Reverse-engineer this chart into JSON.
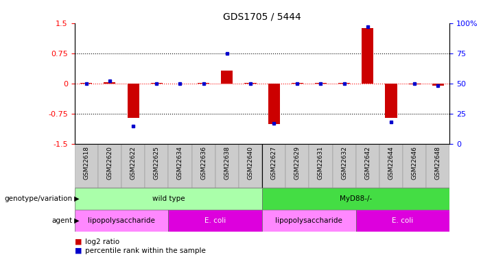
{
  "title": "GDS1705 / 5444",
  "samples": [
    "GSM22618",
    "GSM22620",
    "GSM22622",
    "GSM22625",
    "GSM22634",
    "GSM22636",
    "GSM22638",
    "GSM22640",
    "GSM22627",
    "GSM22629",
    "GSM22631",
    "GSM22632",
    "GSM22642",
    "GSM22644",
    "GSM22646",
    "GSM22648"
  ],
  "log2_ratio": [
    0.02,
    0.03,
    -0.85,
    0.01,
    0.0,
    0.01,
    0.32,
    0.01,
    -1.0,
    0.02,
    0.01,
    0.01,
    1.38,
    -0.85,
    -0.02,
    -0.05
  ],
  "percentile_rank": [
    50,
    52,
    15,
    50,
    50,
    50,
    75,
    50,
    17,
    50,
    50,
    50,
    97,
    18,
    50,
    48
  ],
  "bar_color": "#cc0000",
  "scatter_color": "#0000cc",
  "ylim_left": [
    -1.5,
    1.5
  ],
  "ylim_right": [
    0,
    100
  ],
  "yticks_left": [
    -1.5,
    -0.75,
    0,
    0.75,
    1.5
  ],
  "yticks_right": [
    0,
    25,
    50,
    75,
    100
  ],
  "hlines": [
    -0.75,
    0,
    0.75
  ],
  "hline_colors": [
    "black",
    "red",
    "black"
  ],
  "hline_styles": [
    "dotted",
    "dotted",
    "dotted"
  ],
  "genotype_groups": [
    {
      "label": "wild type",
      "start": 0,
      "end": 8,
      "color": "#aaffaa"
    },
    {
      "label": "MyD88-/-",
      "start": 8,
      "end": 16,
      "color": "#44dd44"
    }
  ],
  "agent_groups": [
    {
      "label": "lipopolysaccharide",
      "start": 0,
      "end": 4,
      "color": "#ff88ff"
    },
    {
      "label": "E. coli",
      "start": 4,
      "end": 8,
      "color": "#dd00dd"
    },
    {
      "label": "lipopolysaccharide",
      "start": 8,
      "end": 12,
      "color": "#ff88ff"
    },
    {
      "label": "E. coli",
      "start": 12,
      "end": 16,
      "color": "#dd00dd"
    }
  ],
  "legend_red_label": "log2 ratio",
  "legend_blue_label": "percentile rank within the sample",
  "bar_color_legend": "#cc0000",
  "scatter_color_legend": "#0000cc",
  "background_color": "#ffffff",
  "bar_width": 0.5,
  "xlabel_gray": "#cccccc",
  "tick_label_fontsize": 6.5,
  "annotation_label_fontsize": 7.5
}
